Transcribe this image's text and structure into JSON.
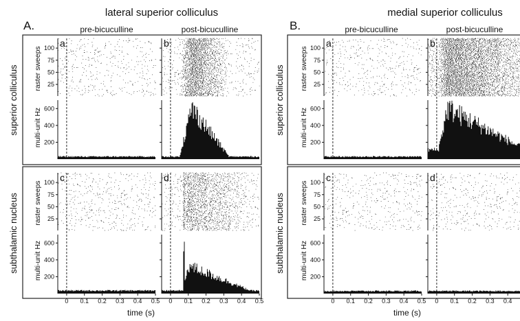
{
  "figure": {
    "section_A": {
      "letter": "A.",
      "title": "lateral superior colliculus"
    },
    "section_B": {
      "letter": "B.",
      "title": "medial superior colliculus"
    },
    "column_titles": [
      "pre-bicuculline",
      "post-bicuculline"
    ],
    "row_labels": [
      "superior colliculus",
      "subthalamic nucleus"
    ],
    "panel_letters": [
      "a",
      "b",
      "c",
      "d"
    ],
    "raster_ylabel": "raster sweeps",
    "psth_ylabel": "multi-unit Hz",
    "xlabel": "time (s)"
  },
  "chart_data": {
    "type": "histogram",
    "x_unit": "s",
    "xlim": [
      -0.05,
      0.5
    ],
    "x_ticks": [
      "0",
      "0.1",
      "0.2",
      "0.3",
      "0.4",
      "0.5"
    ],
    "stimulus_onset": 0,
    "raster_ylim": [
      1,
      120
    ],
    "raster_ticks": [
      "25",
      "50",
      "75",
      "100"
    ],
    "psth_ylim": [
      0,
      700
    ],
    "psth_ticks": [
      "200",
      "400",
      "600"
    ],
    "colors": {
      "ink": "#111111",
      "frame": "#222222"
    },
    "panels": [
      {
        "section": "A",
        "row": "superior colliculus",
        "panel": "a",
        "condition": "pre-bicuculline",
        "baseline_hz": 30,
        "response": "none"
      },
      {
        "section": "A",
        "row": "superior colliculus",
        "panel": "b",
        "condition": "post-bicuculline",
        "baseline_hz": 30,
        "response": "sustained",
        "onset_s": 0.05,
        "peak_hz": 600,
        "peak_time_s": 0.12,
        "end_s": 0.33
      },
      {
        "section": "A",
        "row": "subthalamic nucleus",
        "panel": "c",
        "condition": "pre-bicuculline",
        "baseline_hz": 35,
        "response": "none"
      },
      {
        "section": "A",
        "row": "subthalamic nucleus",
        "panel": "d",
        "condition": "post-bicuculline",
        "baseline_hz": 35,
        "response": "short spike then sustained",
        "onset_s": 0.07,
        "spike_hz": 500,
        "spike_time_s": 0.075,
        "peak_hz": 330,
        "end_s": 0.45
      },
      {
        "section": "B",
        "row": "superior colliculus",
        "panel": "a",
        "condition": "pre-bicuculline",
        "baseline_hz": 30,
        "response": "none"
      },
      {
        "section": "B",
        "row": "superior colliculus",
        "panel": "b",
        "condition": "post-bicuculline",
        "baseline_hz": 110,
        "response": "early sustained",
        "onset_s": 0.01,
        "peak_hz": 600,
        "peak_time_s": 0.06,
        "end_s": 0.5
      },
      {
        "section": "B",
        "row": "subthalamic nucleus",
        "panel": "c",
        "condition": "pre-bicuculline",
        "baseline_hz": 30,
        "response": "none"
      },
      {
        "section": "B",
        "row": "subthalamic nucleus",
        "panel": "d",
        "condition": "post-bicuculline",
        "baseline_hz": 30,
        "response": "none"
      }
    ]
  }
}
